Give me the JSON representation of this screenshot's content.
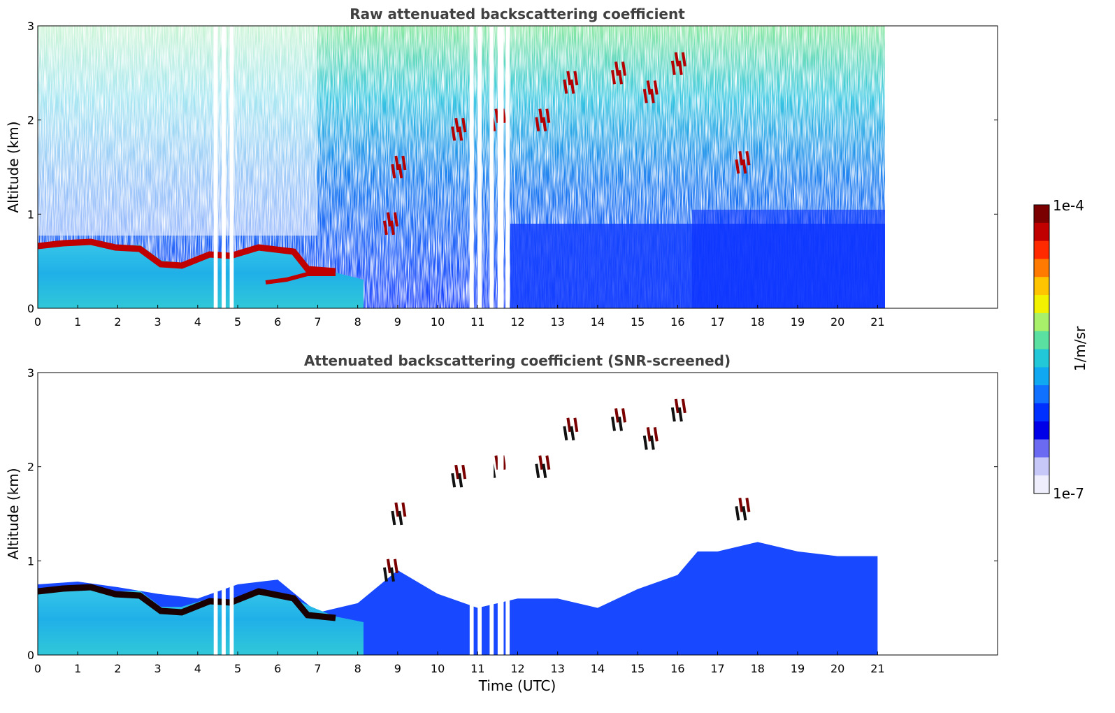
{
  "chart_data": [
    {
      "type": "heatmap",
      "title": "Raw attenuated backscattering coefficient",
      "xlabel": "",
      "ylabel": "Altitude (km)",
      "xlim": [
        0,
        24
      ],
      "ylim": [
        0,
        3
      ],
      "x_ticks": [
        "0",
        "1",
        "2",
        "3",
        "4",
        "5",
        "6",
        "7",
        "8",
        "9",
        "10",
        "11",
        "12",
        "13",
        "14",
        "15",
        "16",
        "17",
        "18",
        "19",
        "20",
        "21"
      ],
      "y_ticks": [
        "0",
        "1",
        "2",
        "3"
      ],
      "data_extent_x": [
        0,
        21.2
      ],
      "gaps_utc": [
        [
          4.4,
          4.5
        ],
        [
          4.6,
          4.7
        ],
        [
          4.8,
          4.9
        ],
        [
          10.8,
          10.9
        ],
        [
          11.0,
          11.1
        ],
        [
          11.3,
          11.4
        ],
        [
          11.5,
          11.65
        ],
        [
          11.7,
          11.8
        ]
      ],
      "boundary_layer_top": {
        "x": [
          0,
          0.5,
          1,
          1.5,
          2,
          2.5,
          3,
          3.5,
          4,
          4.5,
          5,
          5.5,
          6,
          6.5,
          7,
          7.5
        ],
        "y": [
          0.65,
          0.65,
          0.66,
          0.63,
          0.58,
          0.6,
          0.48,
          0.5,
          0.55,
          0.52,
          0.5,
          0.5,
          0.55,
          0.32,
          0.38,
          0.35
        ]
      },
      "cloud_layers": [
        {
          "x": 9.0,
          "y": 1.5
        },
        {
          "x": 8.8,
          "y": 0.9
        },
        {
          "x": 10.5,
          "y": 1.9
        },
        {
          "x": 11.5,
          "y": 2.0
        },
        {
          "x": 12.6,
          "y": 2.0
        },
        {
          "x": 13.3,
          "y": 2.4
        },
        {
          "x": 14.5,
          "y": 2.5
        },
        {
          "x": 15.3,
          "y": 2.3
        },
        {
          "x": 16.0,
          "y": 2.6
        },
        {
          "x": 17.6,
          "y": 1.55
        }
      ],
      "color_scale": {
        "min": "1e-7",
        "max": "1e-4",
        "log": true
      }
    },
    {
      "type": "heatmap",
      "title": "Attenuated backscattering coefficient (SNR-screened)",
      "xlabel": "Time (UTC)",
      "ylabel": "Altitude (km)",
      "xlim": [
        0,
        24
      ],
      "ylim": [
        0,
        3
      ],
      "x_ticks": [
        "0",
        "1",
        "2",
        "3",
        "4",
        "5",
        "6",
        "7",
        "8",
        "9",
        "10",
        "11",
        "12",
        "13",
        "14",
        "15",
        "16",
        "17",
        "18",
        "19",
        "20",
        "21"
      ],
      "y_ticks": [
        "0",
        "1",
        "2",
        "3"
      ],
      "data_extent_x": [
        0,
        21.2
      ],
      "screened_top": {
        "x": [
          0,
          1,
          2,
          3,
          4,
          5,
          6,
          7,
          8,
          9,
          10,
          11,
          12,
          13,
          14,
          15,
          16,
          16.5,
          17,
          18,
          19,
          20,
          21
        ],
        "y": [
          0.75,
          0.78,
          0.72,
          0.65,
          0.6,
          0.75,
          0.8,
          0.45,
          0.55,
          0.9,
          0.65,
          0.5,
          0.6,
          0.6,
          0.5,
          0.7,
          0.85,
          1.1,
          1.1,
          1.2,
          1.1,
          1.05,
          1.05
        ]
      },
      "color_scale": {
        "min": "1e-7",
        "max": "1e-4",
        "log": true
      }
    }
  ],
  "colorbar": {
    "label": "1/m/sr",
    "top_label": "1e-4",
    "bottom_label": "1e-7",
    "colors": [
      "#7a0000",
      "#c00000",
      "#ff2a00",
      "#ff7a00",
      "#ffc400",
      "#f2f200",
      "#a8f06a",
      "#5ae0a0",
      "#22c8d8",
      "#10a8f0",
      "#1070ff",
      "#0030ff",
      "#0000e8",
      "#6a6af2",
      "#c8c8f8",
      "#eeeefc"
    ]
  }
}
